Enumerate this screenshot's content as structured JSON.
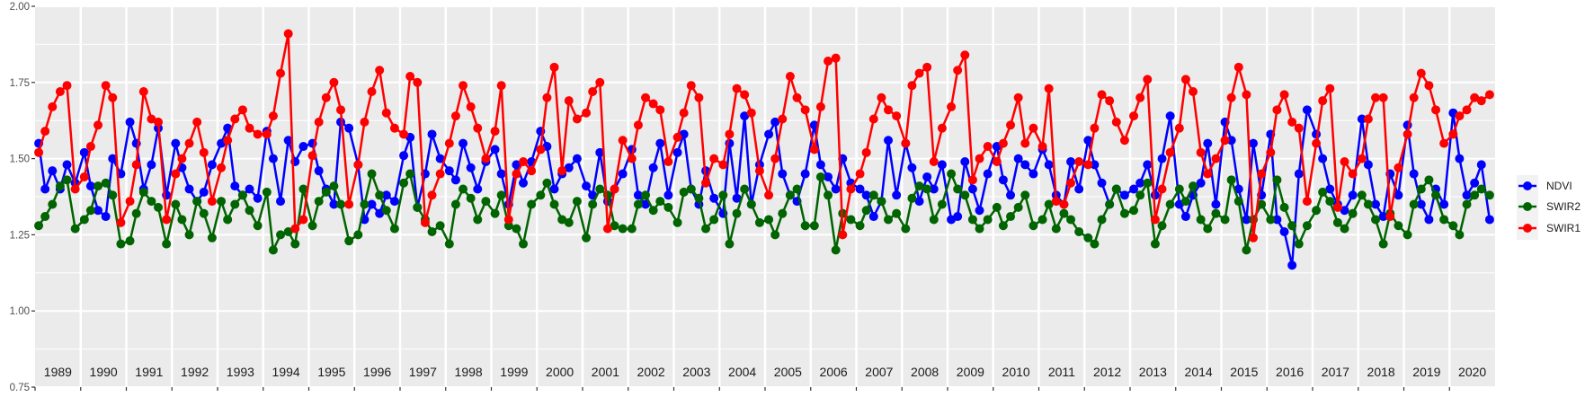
{
  "chart_data": {
    "type": "line",
    "title": "",
    "xlabel": "",
    "ylabel": "",
    "ylim": [
      0.75,
      2.0
    ],
    "yticks": [
      "0.75",
      "1.00",
      "1.25",
      "1.50",
      "1.75",
      "2.00"
    ],
    "grid": true,
    "legend_position": "right",
    "years": [
      "1989",
      "1990",
      "1991",
      "1992",
      "1993",
      "1994",
      "1995",
      "1996",
      "1997",
      "1998",
      "1999",
      "2000",
      "2001",
      "2002",
      "2003",
      "2004",
      "2005",
      "2006",
      "2007",
      "2008",
      "2009",
      "2010",
      "2011",
      "2012",
      "2013",
      "2014",
      "2015",
      "2016",
      "2017",
      "2018",
      "2019",
      "2020"
    ],
    "within_year_offsets": [
      0.08,
      0.22,
      0.38,
      0.55,
      0.7,
      0.88
    ],
    "series": [
      {
        "name": "NDVI",
        "color": "#0000ff",
        "values": [
          [
            1.55,
            1.4,
            1.46,
            1.4,
            1.48,
            1.42
          ],
          [
            1.52,
            1.41,
            1.33,
            1.31,
            1.5,
            1.45
          ],
          [
            1.62,
            1.55,
            1.4,
            1.48,
            1.6,
            1.38
          ],
          [
            1.55,
            1.47,
            1.4,
            1.36,
            1.39,
            1.48
          ],
          [
            1.55,
            1.6,
            1.41,
            1.38,
            1.4,
            1.37
          ],
          [
            1.59,
            1.5,
            1.36,
            1.56,
            1.49,
            1.54
          ],
          [
            1.55,
            1.46,
            1.4,
            1.35,
            1.62,
            1.6
          ],
          [
            1.48,
            1.3,
            1.35,
            1.32,
            1.38,
            1.36
          ],
          [
            1.51,
            1.57,
            1.34,
            1.45,
            1.58,
            1.5
          ],
          [
            1.46,
            1.43,
            1.55,
            1.47,
            1.4,
            1.49
          ],
          [
            1.53,
            1.45,
            1.35,
            1.48,
            1.42,
            1.49
          ],
          [
            1.59,
            1.54,
            1.4,
            1.45,
            1.47,
            1.5
          ],
          [
            1.41,
            1.38,
            1.52,
            1.36,
            1.4,
            1.45
          ],
          [
            1.53,
            1.38,
            1.35,
            1.47,
            1.55,
            1.38
          ],
          [
            1.52,
            1.58,
            1.4,
            1.35,
            1.46,
            1.37
          ],
          [
            1.32,
            1.55,
            1.37,
            1.64,
            1.35,
            1.48
          ],
          [
            1.58,
            1.62,
            1.45,
            1.38,
            1.36,
            1.45
          ],
          [
            1.61,
            1.48,
            1.44,
            1.4,
            1.5,
            1.42
          ],
          [
            1.4,
            1.38,
            1.31,
            1.36,
            1.56,
            1.38
          ],
          [
            1.55,
            1.47,
            1.36,
            1.44,
            1.4,
            1.48
          ],
          [
            1.3,
            1.31,
            1.49,
            1.4,
            1.33,
            1.45
          ],
          [
            1.54,
            1.43,
            1.38,
            1.5,
            1.48,
            1.45
          ],
          [
            1.53,
            1.48,
            1.38,
            1.35,
            1.49,
            1.4
          ],
          [
            1.56,
            1.48,
            1.42,
            1.35,
            1.4,
            1.38
          ],
          [
            1.4,
            1.42,
            1.48,
            1.38,
            1.5,
            1.64
          ],
          [
            1.35,
            1.31,
            1.38,
            1.42,
            1.55,
            1.35
          ],
          [
            1.62,
            1.56,
            1.4,
            1.3,
            1.55,
            1.38
          ],
          [
            1.58,
            1.3,
            1.26,
            1.15,
            1.45,
            1.66
          ],
          [
            1.58,
            1.5,
            1.4,
            1.35,
            1.33,
            1.38
          ],
          [
            1.63,
            1.48,
            1.35,
            1.31,
            1.45,
            1.38
          ],
          [
            1.61,
            1.45,
            1.35,
            1.3,
            1.4,
            1.35
          ],
          [
            1.65,
            1.5,
            1.38,
            1.42,
            1.48,
            1.3
          ]
        ]
      },
      {
        "name": "SWIR2",
        "color": "#006400",
        "values": [
          [
            1.28,
            1.31,
            1.35,
            1.41,
            1.43,
            1.27
          ],
          [
            1.3,
            1.33,
            1.41,
            1.42,
            1.38,
            1.22
          ],
          [
            1.23,
            1.32,
            1.39,
            1.36,
            1.34,
            1.22
          ],
          [
            1.35,
            1.3,
            1.25,
            1.36,
            1.32,
            1.24
          ],
          [
            1.36,
            1.3,
            1.35,
            1.38,
            1.33,
            1.28
          ],
          [
            1.39,
            1.2,
            1.25,
            1.26,
            1.22,
            1.4
          ],
          [
            1.28,
            1.36,
            1.39,
            1.41,
            1.35,
            1.23
          ],
          [
            1.25,
            1.35,
            1.45,
            1.38,
            1.33,
            1.27
          ],
          [
            1.42,
            1.45,
            1.34,
            1.3,
            1.26,
            1.28
          ],
          [
            1.22,
            1.35,
            1.4,
            1.37,
            1.3,
            1.36
          ],
          [
            1.32,
            1.38,
            1.28,
            1.27,
            1.22,
            1.35
          ],
          [
            1.38,
            1.42,
            1.35,
            1.3,
            1.29,
            1.36
          ],
          [
            1.24,
            1.35,
            1.4,
            1.38,
            1.28,
            1.27
          ],
          [
            1.27,
            1.35,
            1.38,
            1.33,
            1.36,
            1.34
          ],
          [
            1.29,
            1.39,
            1.4,
            1.37,
            1.27,
            1.3
          ],
          [
            1.38,
            1.22,
            1.32,
            1.4,
            1.35,
            1.29
          ],
          [
            1.3,
            1.25,
            1.32,
            1.38,
            1.4,
            1.28
          ],
          [
            1.28,
            1.44,
            1.38,
            1.2,
            1.32,
            1.3
          ],
          [
            1.28,
            1.33,
            1.38,
            1.36,
            1.3,
            1.32
          ],
          [
            1.27,
            1.37,
            1.41,
            1.4,
            1.3,
            1.35
          ],
          [
            1.45,
            1.4,
            1.38,
            1.3,
            1.27,
            1.3
          ],
          [
            1.34,
            1.28,
            1.31,
            1.34,
            1.38,
            1.28
          ],
          [
            1.3,
            1.35,
            1.27,
            1.32,
            1.3,
            1.26
          ],
          [
            1.24,
            1.22,
            1.3,
            1.35,
            1.4,
            1.32
          ],
          [
            1.33,
            1.38,
            1.42,
            1.22,
            1.28,
            1.35
          ],
          [
            1.4,
            1.36,
            1.41,
            1.3,
            1.27,
            1.32
          ],
          [
            1.3,
            1.43,
            1.36,
            1.2,
            1.3,
            1.35
          ],
          [
            1.3,
            1.43,
            1.34,
            1.28,
            1.22,
            1.28
          ],
          [
            1.33,
            1.39,
            1.36,
            1.29,
            1.27,
            1.32
          ],
          [
            1.38,
            1.35,
            1.3,
            1.22,
            1.32,
            1.28
          ],
          [
            1.25,
            1.35,
            1.4,
            1.43,
            1.38,
            1.3
          ],
          [
            1.28,
            1.25,
            1.35,
            1.38,
            1.4,
            1.38
          ]
        ]
      },
      {
        "name": "SWIR1",
        "color": "#ff0000",
        "values": [
          [
            1.52,
            1.59,
            1.67,
            1.72,
            1.74,
            1.4
          ],
          [
            1.44,
            1.54,
            1.61,
            1.74,
            1.7,
            1.29
          ],
          [
            1.36,
            1.48,
            1.72,
            1.63,
            1.62,
            1.3
          ],
          [
            1.45,
            1.5,
            1.55,
            1.62,
            1.52,
            1.36
          ],
          [
            1.47,
            1.56,
            1.63,
            1.66,
            1.6,
            1.58
          ],
          [
            1.58,
            1.64,
            1.78,
            1.91,
            1.27,
            1.3
          ],
          [
            1.51,
            1.62,
            1.7,
            1.75,
            1.66,
            1.35
          ],
          [
            1.48,
            1.62,
            1.72,
            1.79,
            1.65,
            1.6
          ],
          [
            1.58,
            1.77,
            1.75,
            1.29,
            1.38,
            1.45
          ],
          [
            1.55,
            1.64,
            1.74,
            1.67,
            1.6,
            1.5
          ],
          [
            1.59,
            1.74,
            1.3,
            1.45,
            1.49,
            1.46
          ],
          [
            1.53,
            1.7,
            1.8,
            1.46,
            1.69,
            1.63
          ],
          [
            1.65,
            1.72,
            1.75,
            1.27,
            1.4,
            1.56
          ],
          [
            1.5,
            1.61,
            1.7,
            1.68,
            1.66,
            1.49
          ],
          [
            1.57,
            1.65,
            1.74,
            1.7,
            1.42,
            1.5
          ],
          [
            1.48,
            1.58,
            1.73,
            1.71,
            1.65,
            1.46
          ],
          [
            1.38,
            1.5,
            1.63,
            1.77,
            1.7,
            1.66
          ],
          [
            1.53,
            1.67,
            1.82,
            1.83,
            1.25,
            1.4
          ],
          [
            1.45,
            1.52,
            1.63,
            1.7,
            1.66,
            1.64
          ],
          [
            1.55,
            1.74,
            1.78,
            1.8,
            1.49,
            1.6
          ],
          [
            1.67,
            1.79,
            1.84,
            1.43,
            1.5,
            1.54
          ],
          [
            1.49,
            1.55,
            1.61,
            1.7,
            1.55,
            1.6
          ],
          [
            1.54,
            1.73,
            1.36,
            1.35,
            1.42,
            1.49
          ],
          [
            1.48,
            1.6,
            1.71,
            1.69,
            1.62,
            1.56
          ],
          [
            1.64,
            1.7,
            1.76,
            1.3,
            1.4,
            1.52
          ],
          [
            1.6,
            1.76,
            1.72,
            1.52,
            1.45,
            1.5
          ],
          [
            1.56,
            1.7,
            1.8,
            1.71,
            1.24,
            1.45
          ],
          [
            1.52,
            1.66,
            1.71,
            1.62,
            1.6,
            1.36
          ],
          [
            1.55,
            1.69,
            1.73,
            1.34,
            1.49,
            1.45
          ],
          [
            1.5,
            1.63,
            1.7,
            1.7,
            1.31,
            1.47
          ],
          [
            1.58,
            1.7,
            1.78,
            1.74,
            1.66,
            1.55
          ],
          [
            1.58,
            1.64,
            1.66,
            1.7,
            1.69,
            1.71
          ]
        ]
      }
    ]
  }
}
